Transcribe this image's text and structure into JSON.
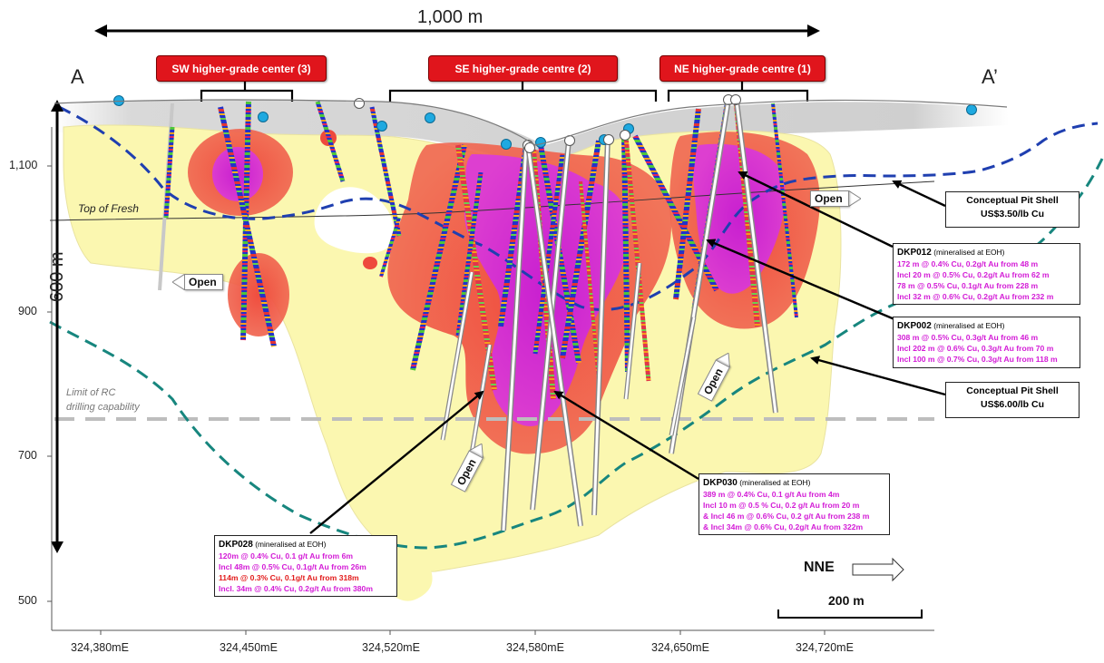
{
  "scale_bar_top": {
    "label": "1,000 m"
  },
  "section_ends": {
    "left": "A",
    "right": "A’"
  },
  "centres": [
    {
      "label": "SW higher-grade center (3)"
    },
    {
      "label": "SE higher-grade centre (2)"
    },
    {
      "label": "NE higher-grade centre (1)"
    }
  ],
  "labels": {
    "top_of_fresh": "Top of Fresh",
    "rc_limit_line1": "Limit of RC",
    "rc_limit_line2": "drilling capability",
    "vertical_scale": "600 m",
    "direction": "NNE",
    "scale_bar_bottom": "200 m"
  },
  "open_labels": [
    "Open",
    "Open",
    "Open",
    "Open"
  ],
  "y_axis": [
    "1,100",
    "900",
    "700",
    "500"
  ],
  "x_axis": [
    "324,380mE",
    "324,450mE",
    "324,520mE",
    "324,580mE",
    "324,650mE",
    "324,720mE"
  ],
  "pit_shells": [
    {
      "line1": "Conceptual Pit Shell",
      "line2": "US$3.50/lb Cu"
    },
    {
      "line1": "Conceptual Pit Shell",
      "line2": "US$6.00/lb Cu"
    }
  ],
  "callouts": {
    "dkp012": {
      "id": "DKP012",
      "note": "(mineralised at EOH)",
      "lines": [
        "172 m @ 0.4% Cu, 0.2g/t Au from 48 m",
        "Incl 20 m @ 0.5% Cu, 0.2g/t Au from 62 m",
        "78 m @ 0.5% Cu, 0.1g/t Au from 228 m",
        "Incl 32 m @ 0.6% Cu, 0.2g/t Au from 232 m"
      ]
    },
    "dkp002": {
      "id": "DKP002",
      "note": "(mineralised at EOH)",
      "lines": [
        "308 m @ 0.5% Cu, 0.3g/t Au from 46 m",
        "Incl 202 m @ 0.6% Cu, 0.3g/t Au from 70 m",
        "Incl 100 m @ 0.7% Cu, 0.3g/t Au from 118 m"
      ]
    },
    "dkp030": {
      "id": "DKP030",
      "note": "(mineralised at EOH)",
      "lines": [
        "389 m @ 0.4% Cu, 0.1 g/t Au from 4m",
        "Incl 10 m @ 0.5 % Cu, 0.2 g/t Au from 20 m",
        "& Incl 46 m @ 0.6% Cu, 0.2 g/t Au from 238 m",
        "& Incl 34m @ 0.6% Cu, 0.2g/t Au from 322m"
      ]
    },
    "dkp028": {
      "id": "DKP028",
      "note": "(mineralised at EOH)",
      "lines": [
        "120m @ 0.4% Cu, 0.1 g/t Au from 6m",
        "Incl 48m @ 0.5% Cu, 0.1g/t Au from 26m",
        "114m @ 0.3% Cu, 0.1g/t Au from 318m",
        "Incl. 34m @ 0.4% Cu, 0.2g/t Au from 380m"
      ]
    }
  },
  "colors": {
    "yellow_body": "#fbf7b0",
    "red_shell": "#ee4a3c",
    "magenta_core": "#d62ec8",
    "pit_350": "#1f3fb0",
    "pit_600": "#17867e",
    "tag_red": "#e0151c",
    "terrain": "#cfcfcf"
  }
}
